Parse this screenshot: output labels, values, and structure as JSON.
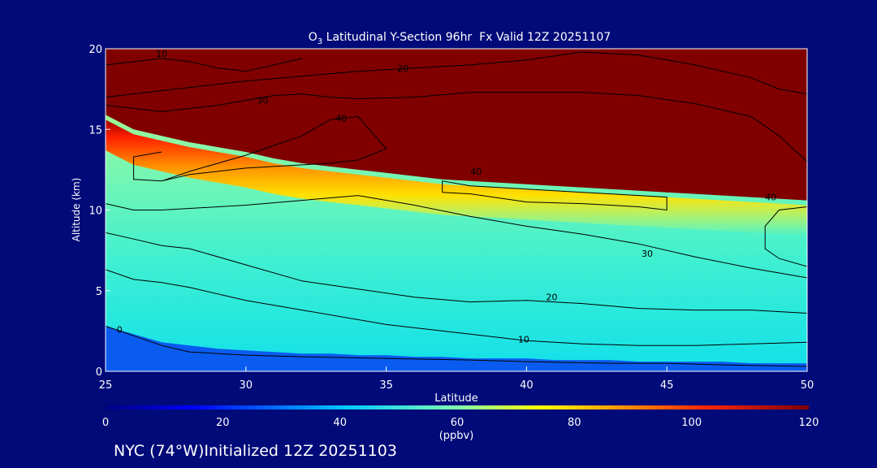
{
  "chart_data": {
    "type": "heatmap",
    "title": "O3 Latitudinal Y-Section 96hr  Fx Valid 12Z 20251107",
    "title_parts": {
      "main": "O",
      "subscript": "3",
      "rest": " Latitudinal Y-Section 96hr  Fx Valid 12Z 20251107"
    },
    "xlabel": "Latitude",
    "ylabel": "Altitude (km)",
    "xlim": [
      25,
      50
    ],
    "ylim": [
      0,
      20
    ],
    "x_ticks": [
      25,
      30,
      35,
      40,
      45,
      50
    ],
    "y_ticks": [
      0,
      5,
      10,
      15,
      20
    ],
    "colorbar": {
      "label": "(ppbv)",
      "range": [
        0,
        120
      ],
      "ticks": [
        0,
        20,
        40,
        60,
        80,
        100,
        120
      ]
    },
    "boundaries": {
      "description_values": "altitude (km) by latitude",
      "lat": [
        25,
        26,
        27,
        28,
        29,
        30,
        31,
        32,
        33,
        34,
        35,
        36,
        37,
        38,
        39,
        40,
        41,
        42,
        43,
        44,
        45,
        46,
        47,
        48,
        49,
        50
      ],
      "stratosphere_base_km": [
        15.9,
        15.0,
        14.6,
        14.2,
        13.9,
        13.6,
        13.2,
        12.9,
        12.7,
        12.5,
        12.3,
        12.1,
        11.9,
        11.8,
        11.7,
        11.6,
        11.5,
        11.4,
        11.3,
        11.2,
        11.1,
        11.0,
        10.9,
        10.8,
        10.7,
        10.6
      ],
      "lowlayer_top_km": [
        2.8,
        2.3,
        1.8,
        1.6,
        1.4,
        1.3,
        1.2,
        1.1,
        1.1,
        1.0,
        1.0,
        0.9,
        0.9,
        0.8,
        0.8,
        0.8,
        0.7,
        0.7,
        0.7,
        0.6,
        0.6,
        0.6,
        0.6,
        0.5,
        0.5,
        0.5
      ]
    },
    "contours": [
      {
        "level": 0,
        "lat": [
          25,
          26,
          27,
          28,
          30,
          32,
          35,
          38,
          40,
          43,
          45,
          47,
          50
        ],
        "alt": [
          2.8,
          2.2,
          1.6,
          1.2,
          1.0,
          0.9,
          0.8,
          0.7,
          0.6,
          0.5,
          0.5,
          0.4,
          0.3
        ],
        "label_at": [
          25.5,
          2.4
        ]
      },
      {
        "level": 10,
        "lat": [
          25,
          26,
          27,
          28,
          30,
          32,
          35,
          38,
          40,
          42,
          44,
          46,
          48,
          50
        ],
        "alt": [
          6.3,
          5.7,
          5.5,
          5.2,
          4.4,
          3.8,
          2.9,
          2.3,
          1.9,
          1.7,
          1.6,
          1.6,
          1.7,
          1.8
        ],
        "label_at": [
          39.9,
          1.8
        ]
      },
      {
        "level": 20,
        "lat": [
          25,
          26,
          27,
          28,
          30,
          32,
          34,
          36,
          38,
          40,
          42,
          44,
          46,
          48,
          50
        ],
        "alt": [
          8.6,
          8.2,
          7.8,
          7.6,
          6.6,
          5.6,
          5.1,
          4.6,
          4.3,
          4.4,
          4.2,
          3.9,
          3.8,
          3.8,
          3.6
        ],
        "label_at": [
          40.9,
          4.4
        ]
      },
      {
        "level": 30,
        "lat": [
          25,
          26,
          27,
          28,
          30,
          32,
          34,
          36,
          38,
          40,
          42,
          44,
          46,
          48,
          50
        ],
        "alt": [
          10.4,
          10.0,
          10.0,
          10.1,
          10.3,
          10.6,
          10.9,
          10.3,
          9.6,
          9.0,
          8.5,
          7.9,
          7.1,
          6.4,
          5.8
        ],
        "label_at": [
          44.3,
          7.1
        ]
      },
      {
        "level": 40,
        "lat": [
          37,
          38,
          40,
          42,
          44,
          45,
          45,
          44,
          42,
          40,
          38,
          37,
          37
        ],
        "alt": [
          11.1,
          11.0,
          10.5,
          10.4,
          10.2,
          10.0,
          10.8,
          10.9,
          11.1,
          11.3,
          11.5,
          11.8,
          11.1
        ],
        "label_at": [
          38.2,
          12.2
        ]
      },
      {
        "level": 40,
        "lat": [
          27,
          28,
          30,
          32,
          33,
          34,
          35,
          34,
          33,
          32,
          30,
          28,
          27,
          26,
          26,
          27
        ],
        "alt": [
          11.8,
          12.4,
          13.4,
          14.6,
          15.6,
          15.8,
          13.8,
          13.1,
          12.9,
          12.8,
          12.6,
          12.2,
          11.8,
          11.9,
          13.3,
          13.6
        ],
        "label_at": [
          33.4,
          15.5
        ]
      },
      {
        "level": 40,
        "lat": [
          50,
          49,
          48.5,
          48.5,
          49,
          50
        ],
        "alt": [
          10.2,
          10.0,
          9.0,
          7.6,
          7.0,
          6.5
        ],
        "label_at": [
          48.7,
          10.6
        ]
      },
      {
        "level": 10,
        "lat": [
          25,
          26,
          27,
          28,
          29,
          30,
          31,
          32
        ],
        "alt": [
          19.0,
          19.2,
          19.4,
          19.2,
          18.8,
          18.6,
          19.0,
          19.4
        ],
        "label_at": [
          27.0,
          19.5
        ]
      },
      {
        "level": 20,
        "lat": [
          25,
          28,
          30,
          32,
          34,
          36,
          38,
          40,
          42,
          44,
          46,
          48,
          49,
          50
        ],
        "alt": [
          17.0,
          17.6,
          18.0,
          18.3,
          18.6,
          18.8,
          19.0,
          19.3,
          19.8,
          19.6,
          19.0,
          18.2,
          17.5,
          17.2
        ],
        "label_at": [
          35.6,
          18.6
        ]
      },
      {
        "level": 30,
        "lat": [
          25,
          27,
          28,
          29,
          30,
          31,
          32,
          33,
          34,
          36,
          38,
          40,
          42,
          44,
          46,
          48,
          49,
          50
        ],
        "alt": [
          16.5,
          16.1,
          16.3,
          16.5,
          16.8,
          17.1,
          17.2,
          17.0,
          16.9,
          17.0,
          17.3,
          17.3,
          17.3,
          17.1,
          16.6,
          15.8,
          14.6,
          13.0
        ],
        "label_at": [
          30.6,
          16.6
        ]
      }
    ]
  },
  "footer": {
    "caption": "NYC (74°W)Initialized 12Z 20251103"
  }
}
